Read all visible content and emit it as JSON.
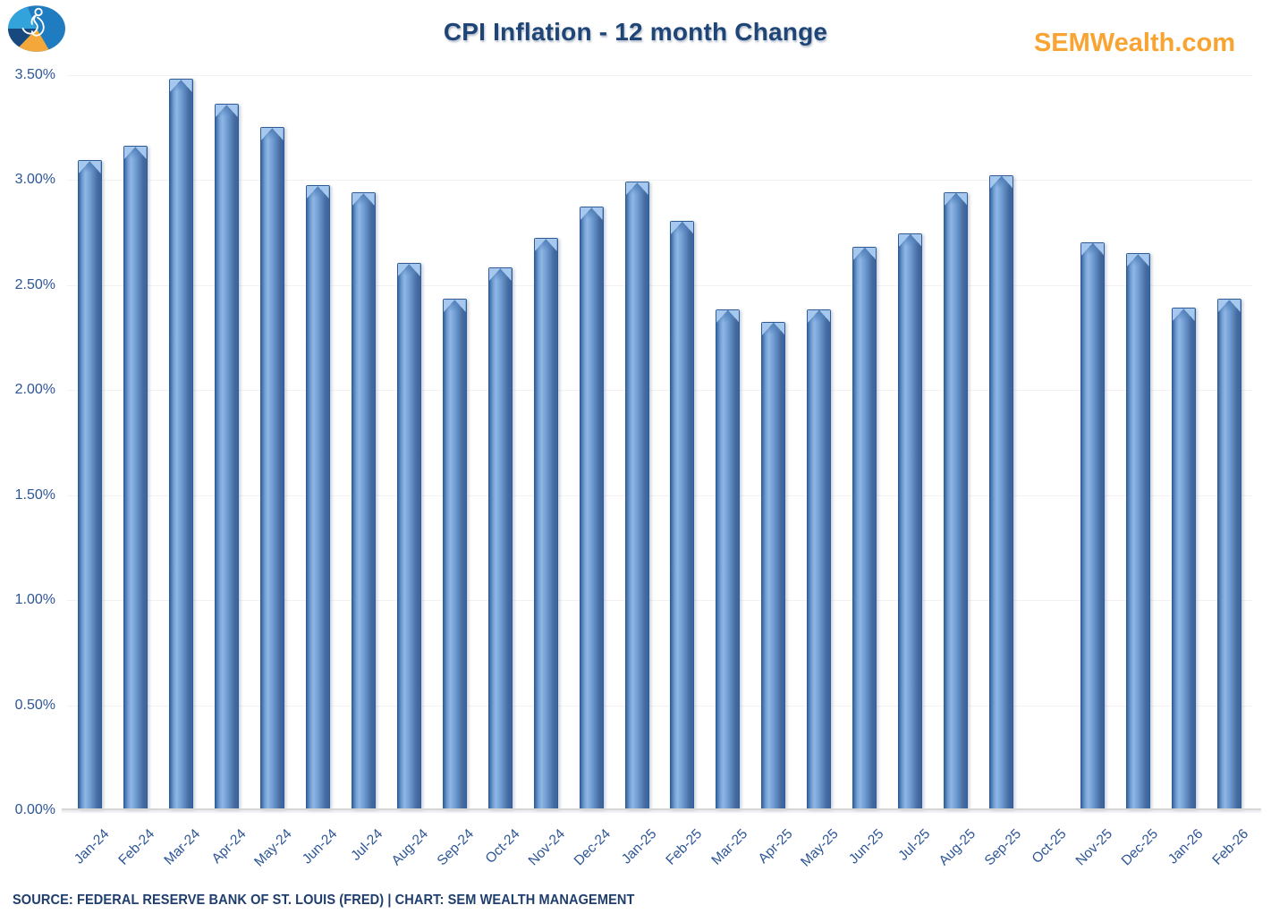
{
  "header": {
    "title": "CPI Inflation - 12 month Change",
    "brand": "SEMWealth.com",
    "logo_icon": "sem-pie-logo"
  },
  "chart_data": {
    "type": "bar",
    "title": "CPI Inflation - 12 month Change",
    "categories": [
      "Jan-24",
      "Feb-24",
      "Mar-24",
      "Apr-24",
      "May-24",
      "Jun-24",
      "Jul-24",
      "Aug-24",
      "Sep-24",
      "Oct-24",
      "Nov-24",
      "Dec-24",
      "Jan-25",
      "Feb-25",
      "Mar-25",
      "Apr-25",
      "May-25",
      "Jun-25",
      "Jul-25",
      "Aug-25",
      "Sep-25",
      "Oct-25",
      "Nov-25",
      "Dec-25",
      "Jan-26",
      "Feb-26"
    ],
    "values": [
      3.09,
      3.16,
      3.48,
      3.36,
      3.25,
      2.97,
      2.94,
      2.6,
      2.43,
      2.58,
      2.72,
      2.87,
      2.99,
      2.8,
      2.38,
      2.32,
      2.38,
      2.68,
      2.74,
      2.94,
      3.02,
      null,
      2.7,
      2.65,
      2.39,
      2.43
    ],
    "missing_categories": [
      "Oct-25"
    ],
    "unit": "%",
    "xlabel": "",
    "ylabel": "",
    "ylim": [
      0,
      3.5
    ],
    "ytick_step": 0.5,
    "ytick_labels": [
      "0.00%",
      "0.50%",
      "1.00%",
      "1.50%",
      "2.00%",
      "2.50%",
      "3.00%",
      "3.50%"
    ],
    "grid": "faint horizontal lines at each 0.50% step",
    "legend": "none",
    "x_label_rotation_deg": 45
  },
  "footer": {
    "source_line": "SOURCE: FEDERAL RESERVE BANK OF ST. LOUIS (FRED) | CHART: SEM WEALTH MANAGEMENT"
  },
  "colors": {
    "title": "#1F4576",
    "brand": "#F9A432",
    "axis_labels": "#2D5696",
    "footer": "#1F3E6E",
    "gridline": "#F2F2F2",
    "axis_line": "#D6D6D6",
    "bar_border": "#2F5C94",
    "bar_body_edge": "#3A66A0",
    "bar_body_mid": "#6F9CD2",
    "bar_body_light": "#8FB7E5",
    "bar_body_dark": "#44699F",
    "bar_cap_highlight": "#A6C8EE",
    "bar_cap_shade": "#4E7DB6",
    "logo_light_blue": "#33A3DC",
    "logo_medium_blue": "#1F7CC0",
    "logo_dark_navy": "#17497E",
    "logo_orange": "#F4A83B"
  }
}
